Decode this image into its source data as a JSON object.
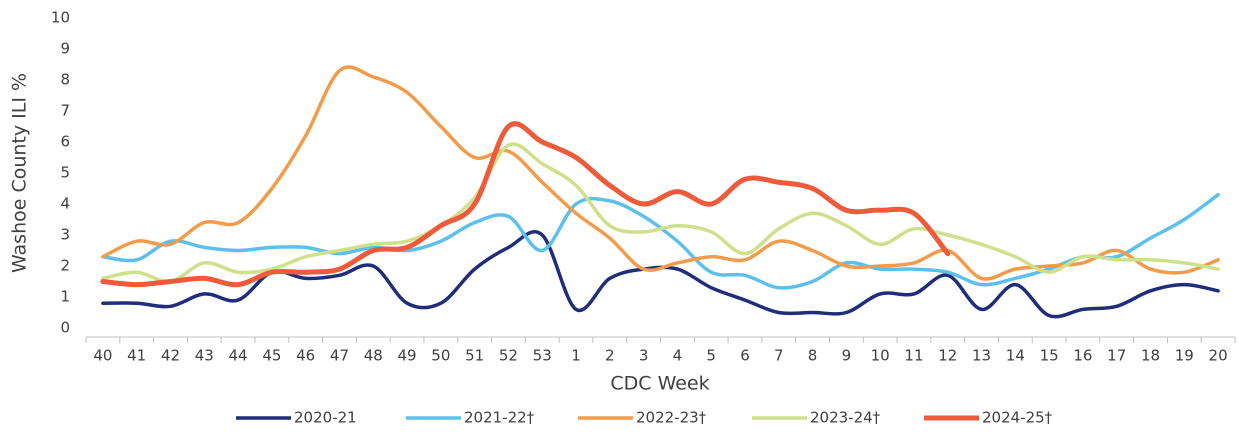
{
  "chart_data": {
    "type": "line",
    "y_label": "Washoe County ILI %",
    "x_label": "CDC Week",
    "categories": [
      "40",
      "41",
      "42",
      "43",
      "44",
      "45",
      "46",
      "47",
      "48",
      "49",
      "50",
      "51",
      "52",
      "53",
      "1",
      "2",
      "3",
      "4",
      "5",
      "6",
      "7",
      "8",
      "9",
      "10",
      "11",
      "12",
      "13",
      "14",
      "15",
      "16",
      "17",
      "18",
      "19",
      "20"
    ],
    "ylim": [
      0,
      10
    ],
    "yticks": [
      0,
      1,
      2,
      3,
      4,
      5,
      6,
      7,
      8,
      9,
      10
    ],
    "grid": false,
    "legend": "bottom",
    "series": [
      {
        "name": "2020-21",
        "color": "#1f2d7b",
        "values": [
          0.8,
          0.8,
          0.7,
          1.1,
          0.9,
          1.8,
          1.6,
          1.7,
          2.0,
          0.8,
          0.8,
          1.9,
          2.6,
          3.0,
          0.6,
          1.6,
          1.9,
          1.9,
          1.3,
          0.9,
          0.5,
          0.5,
          0.5,
          1.1,
          1.1,
          1.7,
          0.6,
          1.4,
          0.4,
          0.6,
          0.7,
          1.2,
          1.4,
          1.2
        ]
      },
      {
        "name": "2021-22†",
        "color": "#5bc0ec",
        "values": [
          2.3,
          2.2,
          2.8,
          2.6,
          2.5,
          2.6,
          2.6,
          2.4,
          2.6,
          2.5,
          2.8,
          3.4,
          3.6,
          2.5,
          4.0,
          4.1,
          3.6,
          2.8,
          1.8,
          1.7,
          1.3,
          1.5,
          2.1,
          1.9,
          1.9,
          1.8,
          1.4,
          1.6,
          1.9,
          2.3,
          2.3,
          2.9,
          3.5,
          4.3
        ]
      },
      {
        "name": "2022-23†",
        "color": "#f29b4a",
        "values": [
          2.3,
          2.8,
          2.7,
          3.4,
          3.4,
          4.5,
          6.2,
          8.3,
          8.1,
          7.6,
          6.5,
          5.5,
          5.7,
          4.7,
          3.7,
          2.9,
          1.9,
          2.1,
          2.3,
          2.2,
          2.8,
          2.5,
          2.0,
          2.0,
          2.1,
          2.5,
          1.6,
          1.9,
          2.0,
          2.1,
          2.5,
          1.9,
          1.8,
          2.2
        ]
      },
      {
        "name": "2023-24†",
        "color": "#cfe08a",
        "values": [
          1.6,
          1.8,
          1.5,
          2.1,
          1.8,
          1.9,
          2.3,
          2.5,
          2.7,
          2.8,
          3.3,
          4.2,
          5.9,
          5.3,
          4.6,
          3.3,
          3.1,
          3.3,
          3.1,
          2.4,
          3.2,
          3.7,
          3.3,
          2.7,
          3.2,
          3.0,
          2.7,
          2.3,
          1.8,
          2.3,
          2.2,
          2.2,
          2.1,
          1.9
        ]
      },
      {
        "name": "2024-25†",
        "color": "#ee5a3a",
        "values": [
          1.5,
          1.4,
          1.5,
          1.6,
          1.4,
          1.8,
          1.8,
          1.9,
          2.5,
          2.6,
          3.3,
          4.0,
          6.5,
          6.0,
          5.5,
          4.6,
          4.0,
          4.4,
          4.0,
          4.8,
          4.7,
          4.5,
          3.8,
          3.8,
          3.7,
          2.4,
          null,
          null,
          null,
          null,
          null,
          null,
          null,
          null
        ]
      }
    ]
  }
}
